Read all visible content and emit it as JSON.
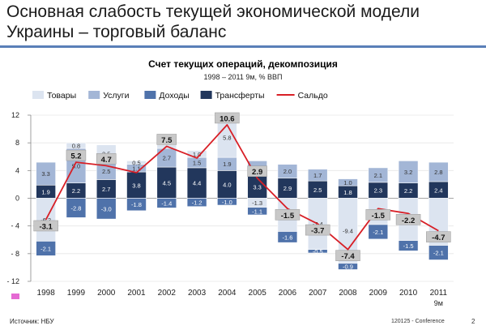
{
  "slide": {
    "title_line1": "Основная слабость текущей экономической модели",
    "title_line2": "Украины – торговый баланс"
  },
  "chart_data": {
    "type": "bar",
    "title": "Счет текущих операций, декомпозиция",
    "subtitle": "1998 – 2011 9м, % ВВП",
    "categories": [
      "1998",
      "1999",
      "2000",
      "2001",
      "2002",
      "2003",
      "2004",
      "2005",
      "2006",
      "2007",
      "2008",
      "2009",
      "2010",
      "2011"
    ],
    "category_sublabels": [
      "",
      "",
      "",
      "",
      "",
      "",
      "",
      "",
      "",
      "",
      "",
      "",
      "",
      "9м"
    ],
    "ylim": [
      -12,
      12
    ],
    "yticks": [
      12,
      8,
      4,
      0,
      -4,
      -8,
      -12
    ],
    "legend_position": "top",
    "series": [
      {
        "name": "Товары",
        "color": "#dce4f0",
        "values": [
          -6.2,
          0.8,
          2.5,
          0.5,
          0.5,
          1.0,
          5.8,
          -1.3,
          -4.8,
          -7.4,
          -9.4,
          -3.8,
          -6.1,
          -6.8
        ]
      },
      {
        "name": "Услуги",
        "color": "#a3b6d6",
        "values": [
          3.3,
          5.0,
          2.5,
          1.1,
          2.7,
          1.5,
          1.9,
          2.1,
          2.0,
          1.7,
          1.0,
          2.1,
          3.2,
          2.8
        ]
      },
      {
        "name": "Доходы",
        "color": "#4f72aa",
        "values": [
          -2.1,
          -2.8,
          -3.0,
          -1.8,
          -1.4,
          -1.2,
          -1.0,
          -1.1,
          -1.6,
          -0.5,
          -0.9,
          -2.1,
          -1.5,
          -2.1
        ]
      },
      {
        "name": "Трансферты",
        "color": "#22375c",
        "values": [
          1.9,
          2.2,
          2.7,
          3.8,
          4.5,
          4.4,
          4.0,
          3.3,
          2.9,
          2.5,
          1.8,
          2.3,
          2.2,
          2.4
        ]
      }
    ],
    "line_series": {
      "name": "Сальдо",
      "color": "#d81f26",
      "values": [
        -3.1,
        5.2,
        4.7,
        3.7,
        7.5,
        5.8,
        10.6,
        2.9,
        -1.5,
        -3.7,
        -7.4,
        -1.5,
        -2.2,
        -4.7
      ]
    },
    "label_texts": {
      "goods": [
        "-6.2",
        "0.8",
        "2.5",
        "0.5",
        "",
        "1.0",
        "5.8",
        "-1.3",
        "-4.8",
        "-7.4",
        "-9.4",
        "-3.8",
        "-6.1",
        ""
      ],
      "services": [
        "3.3",
        "5.0",
        "2.5",
        "1.1",
        "2.7",
        "1.5",
        "1.9",
        "2.1",
        "2.0",
        "1.7",
        "1.0",
        "2.1",
        "3.2",
        "2.8"
      ],
      "income": [
        "-2.1",
        "-2.8",
        "-3.0",
        "-1.8",
        "-1.4",
        "-1.2",
        "-1.0",
        "-1.1",
        "-1.6",
        "-0.5",
        "-0.9",
        "-2.1",
        "-1.5",
        "-2.1"
      ],
      "transfers": [
        "1.9",
        "2.2",
        "2.7",
        "3.8",
        "4.5",
        "4.4",
        "4.0",
        "3.3",
        "2.9",
        "2.5",
        "1.8",
        "2.3",
        "2.2",
        "2.4"
      ],
      "balance": [
        "-3.1",
        "5.2",
        "4.7",
        "",
        "7.5",
        "",
        "10.6",
        "2.9",
        "-1.5",
        "-3.7",
        "-7.4",
        "-1.5",
        "-2.2",
        "-4.7"
      ]
    }
  },
  "footer": {
    "source": "Источник: НБУ",
    "code": "120125 - Conference",
    "page": "2"
  }
}
